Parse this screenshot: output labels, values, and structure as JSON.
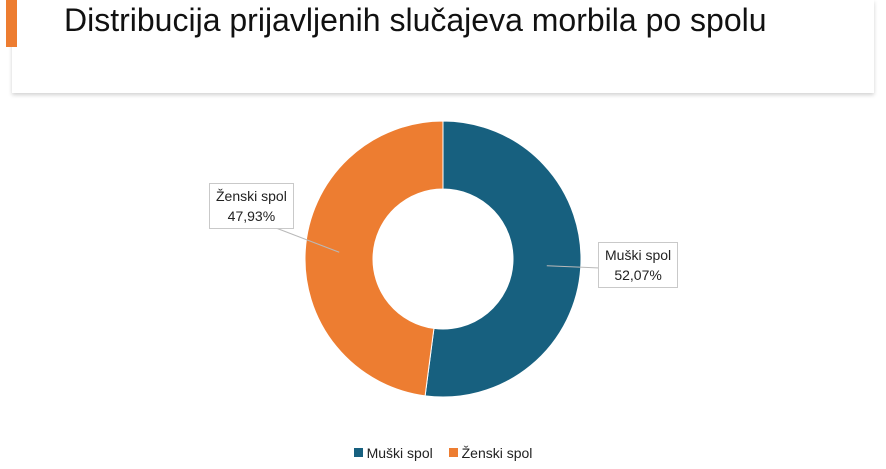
{
  "header": {
    "title": "Distribucija prijavljenih slučajeva morbila po spolu",
    "accent_color": "#ED7D31"
  },
  "chart_data": {
    "type": "pie",
    "variant": "donut",
    "title": "Distribucija prijavljenih slučajeva morbila po spolu",
    "legend_position": "bottom",
    "slices": [
      {
        "label": "Muški spol",
        "value": 52.07,
        "value_label": "52,07%",
        "color": "#17607F"
      },
      {
        "label": "Ženski spol",
        "value": 47.93,
        "value_label": "47,93%",
        "color": "#ED7D31"
      }
    ]
  },
  "legend": {
    "items": [
      {
        "label": "Muški spol",
        "color": "#17607F"
      },
      {
        "label": "Ženski spol",
        "color": "#ED7D31"
      }
    ]
  }
}
